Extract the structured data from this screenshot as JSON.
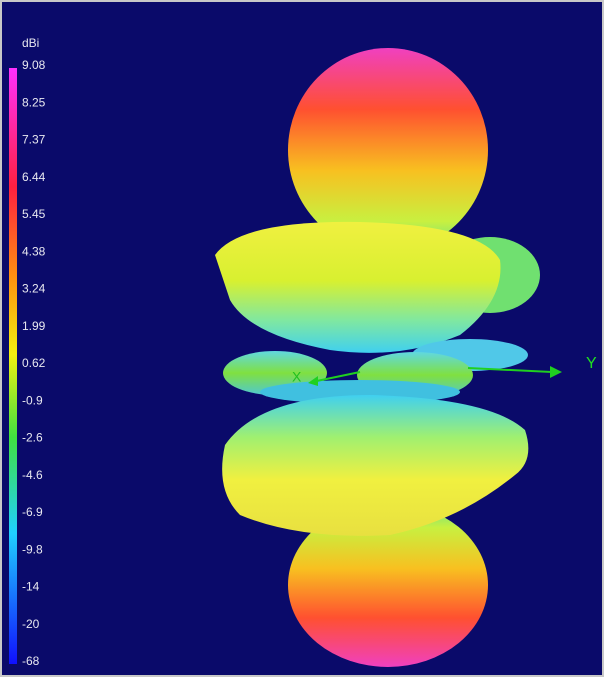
{
  "colorbar": {
    "unit": "dBi",
    "labels": [
      9.08,
      8.25,
      7.37,
      6.44,
      5.45,
      4.38,
      3.24,
      1.99,
      0.62,
      -0.9,
      -2.6,
      -4.6,
      -6.9,
      -9.8,
      -14,
      -20,
      -68
    ]
  },
  "axes": {
    "x": "X",
    "y": "Y"
  }
}
